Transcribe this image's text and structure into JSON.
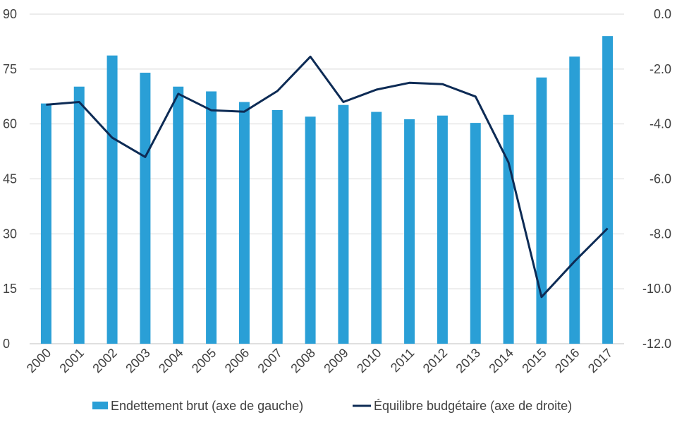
{
  "chart_data": {
    "type": "bar",
    "title": "",
    "categories": [
      "2000",
      "2001",
      "2002",
      "2003",
      "2004",
      "2005",
      "2006",
      "2007",
      "2008",
      "2009",
      "2010",
      "2011",
      "2012",
      "2013",
      "2014",
      "2015",
      "2016",
      "2017"
    ],
    "series": [
      {
        "name": "Endettement brut (axe de gauche)",
        "type": "bar",
        "axis": "left",
        "color": "#2a9fd6",
        "values": [
          65.6,
          70.2,
          78.7,
          74.0,
          70.2,
          68.9,
          66.0,
          63.8,
          62.0,
          65.2,
          63.3,
          61.3,
          62.3,
          60.3,
          62.5,
          72.7,
          78.4,
          84.0
        ]
      },
      {
        "name": "Équilibre budgétaire (axe de droite)",
        "type": "line",
        "axis": "right",
        "color": "#0d2b55",
        "values": [
          -3.3,
          -3.2,
          -4.5,
          -5.2,
          -2.9,
          -3.5,
          -3.55,
          -2.8,
          -1.55,
          -3.2,
          -2.75,
          -2.5,
          -2.55,
          -3.0,
          -5.4,
          -10.3,
          -9.0,
          -7.8
        ]
      }
    ],
    "y_left": {
      "min": 0,
      "max": 90,
      "ticks": [
        "0",
        "15",
        "30",
        "45",
        "60",
        "75",
        "90"
      ]
    },
    "y_right": {
      "min": -12,
      "max": 0,
      "ticks": [
        "-12.0",
        "-10.0",
        "-8.0",
        "-6.0",
        "-4.0",
        "-2.0",
        "0.0"
      ]
    },
    "grid": true,
    "legend_position": "bottom"
  }
}
